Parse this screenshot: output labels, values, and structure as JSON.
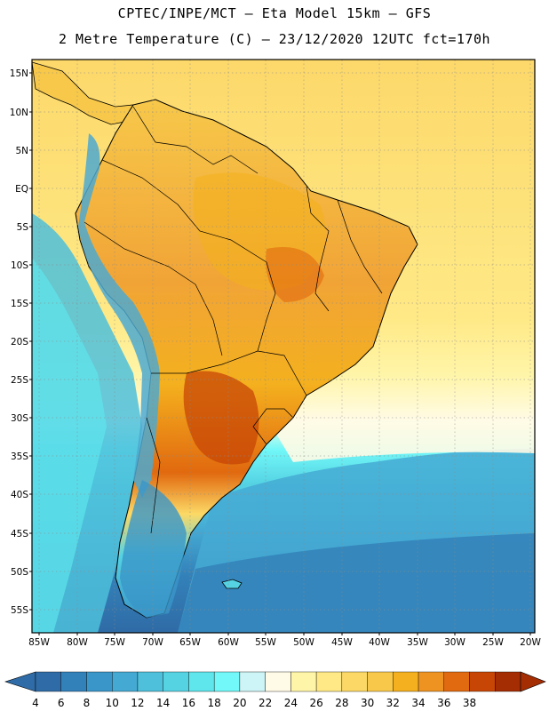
{
  "header": {
    "line1": "CPTEC/INPE/MCT –  Eta Model 15km – GFS",
    "line2": "2 Metre Temperature (C) – 23/12/2020 12UTC fct=170h"
  },
  "map": {
    "lat_labels": [
      "15N",
      "10N",
      "5N",
      "EQ",
      "5S",
      "10S",
      "15S",
      "20S",
      "25S",
      "30S",
      "35S",
      "40S",
      "45S",
      "50S",
      "55S"
    ],
    "lon_labels": [
      "85W",
      "80W",
      "75W",
      "70W",
      "65W",
      "60W",
      "55W",
      "50W",
      "45W",
      "40W",
      "35W",
      "30W",
      "25W",
      "20W"
    ]
  },
  "colorbar": {
    "labels": [
      "4",
      "6",
      "8",
      "10",
      "12",
      "14",
      "16",
      "18",
      "20",
      "22",
      "24",
      "26",
      "28",
      "30",
      "32",
      "34",
      "36",
      "38"
    ],
    "colors": [
      "#2f6ba6",
      "#3381b9",
      "#3a96c8",
      "#45aad3",
      "#4ec0db",
      "#55d3e3",
      "#5ee6ec",
      "#72f8f8",
      "#cdf4f6",
      "#fffbe6",
      "#fff5a8",
      "#ffe986",
      "#fcd966",
      "#f7c84a",
      "#f4b01e",
      "#ee9322",
      "#e1690f",
      "#c74606",
      "#a42d03"
    ]
  },
  "palette": {
    "ocean_tropical": "#fde27a",
    "ocean_cool": "#55d3e3",
    "ocean_cold": "#2f6ba6",
    "land_hot": "#f1a436",
    "land_hottest": "#d86417",
    "andes": "#4ea9d0"
  }
}
